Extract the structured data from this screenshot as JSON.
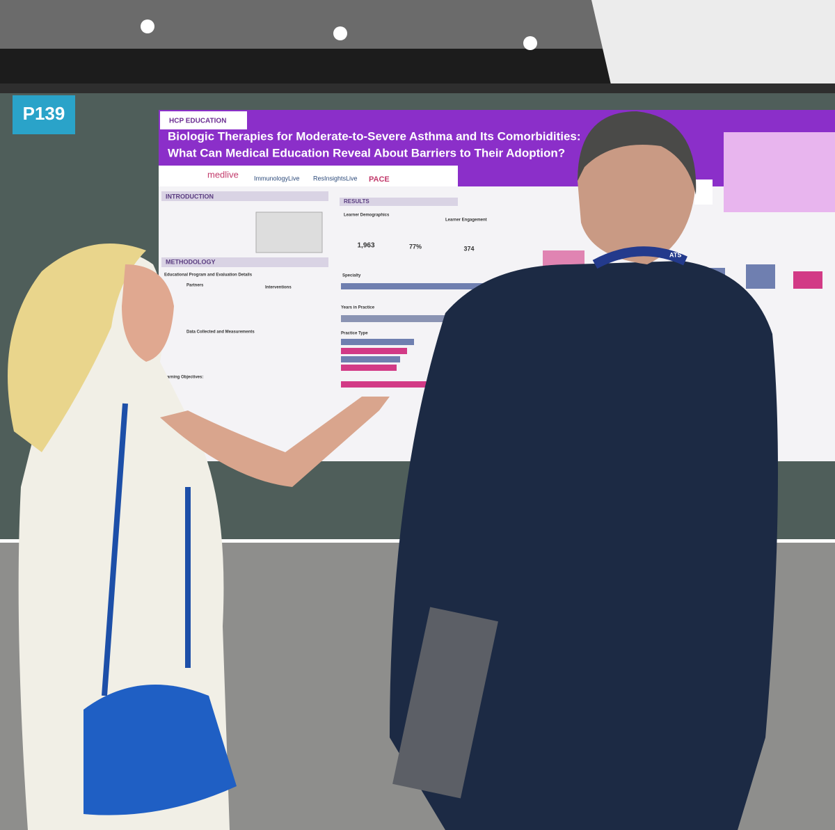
{
  "board": {
    "label": "P139"
  },
  "poster": {
    "header": "HCP EDUCATION",
    "title": [
      "Biologic Therapies for Moderate-to-Severe Asthma and Its Comorbidities:",
      "What Can Medical Education Reveal About Barriers to Their Adoption?"
    ],
    "logos": [
      "medlive",
      "ImmunologyLive",
      "ResInsightsLive",
      "PACE"
    ],
    "sections": {
      "introduction": "INTRODUCTION",
      "methodology": "METHODOLOGY",
      "results": "RESULTS"
    },
    "subheads": [
      "Educational Program and Evaluation Details",
      "Partners",
      "Interventions",
      "Data Collected and Measurements",
      "Learning Objectives:"
    ],
    "results": {
      "demographics": "Learner Demographics",
      "engagement": "Learner Engagement",
      "stats": [
        "1,963",
        "77%",
        "374"
      ],
      "labels": [
        "Specialty",
        "Years in Practice",
        "Practice Type"
      ]
    }
  },
  "badge": "ATS"
}
